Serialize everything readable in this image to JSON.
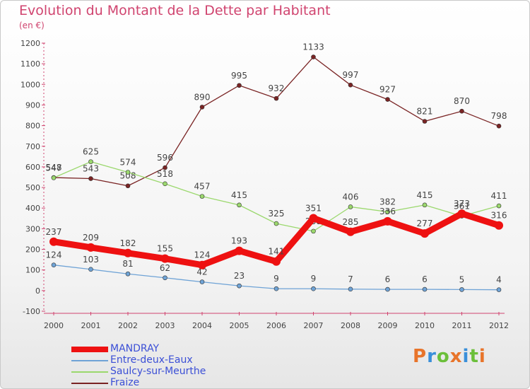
{
  "title": "Evolution du Montant de la Dette par Habitant",
  "subtitle": "(en €)",
  "logo_text": "Proxiti",
  "chart_data": {
    "type": "line",
    "x": [
      "2000",
      "2001",
      "2002",
      "2003",
      "2004",
      "2005",
      "2006",
      "2007",
      "2008",
      "2009",
      "2010",
      "2011",
      "2012"
    ],
    "ylim": [
      -100,
      1200
    ],
    "yticks": [
      -100,
      0,
      100,
      200,
      300,
      400,
      500,
      600,
      700,
      800,
      900,
      1000,
      1100,
      1200
    ],
    "grid": false,
    "legend_position": "bottom-left",
    "series": [
      {
        "name": "Fraize",
        "color": "#7a2424",
        "values": [
          548,
          543,
          508,
          596,
          890,
          995,
          932,
          1133,
          997,
          927,
          821,
          870,
          798
        ]
      },
      {
        "name": "Saulcy-sur-Meurthe",
        "color": "#9bd86d",
        "values": [
          547,
          625,
          574,
          518,
          457,
          415,
          325,
          288,
          406,
          382,
          415,
          361,
          411
        ]
      },
      {
        "name": "Entre-deux-Eaux",
        "color": "#6fa3d6",
        "values": [
          124,
          103,
          81,
          62,
          42,
          23,
          9,
          9,
          7,
          6,
          6,
          5,
          4
        ]
      },
      {
        "name": "MANDRAY",
        "color": "#ee1111",
        "values": [
          237,
          209,
          182,
          155,
          124,
          193,
          141,
          351,
          285,
          336,
          277,
          373,
          316
        ]
      }
    ],
    "legend_order": [
      "MANDRAY",
      "Entre-deux-Eaux",
      "Saulcy-sur-Meurthe",
      "Fraize"
    ]
  }
}
